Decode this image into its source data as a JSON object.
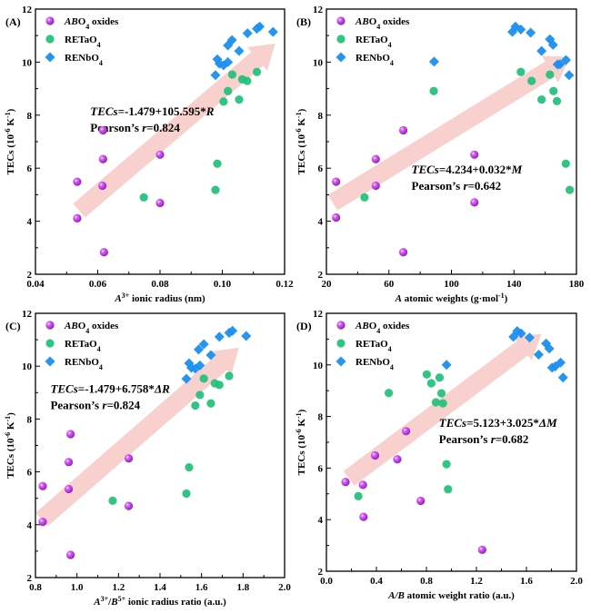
{
  "chart_data": [
    {
      "type": "scatter",
      "panel_label": "(A)",
      "xlabel": "A3+ ionic radius (nm)",
      "xlabel_parts": {
        "italic": "A",
        "sup": "3+",
        "rest": " ionic radius (nm)"
      },
      "ylabel": "TECs (10-6 K-1)",
      "xlim": [
        0.04,
        0.12
      ],
      "ylim": [
        2,
        12
      ],
      "xticks": [
        0.04,
        0.06,
        0.08,
        0.1,
        0.12
      ],
      "xtick_labels": [
        "0.04",
        "0.06",
        "0.08",
        "0.10",
        "0.12"
      ],
      "yticks": [
        2,
        4,
        6,
        8,
        10,
        12
      ],
      "ytick_labels": [
        "2",
        "4",
        "6",
        "8",
        "10",
        "12"
      ],
      "legend_position": "top-left",
      "equation": {
        "line1_italic": "TECs",
        "line1_rest": "=-1.479+105.595*",
        "line1_var": "R",
        "line2_text": "Pearson’s ",
        "line2_italic": "r",
        "line2_rest": "=0.824",
        "position": "upper-middle"
      },
      "arrow": {
        "from": [
          0.054,
          4.4
        ],
        "to": [
          0.117,
          10.7
        ]
      },
      "series": [
        {
          "name": "ABO4 oxides",
          "marker": "sphere",
          "color": "#c84fe6",
          "points": [
            [
              0.0534,
              5.49
            ],
            [
              0.0534,
              4.11
            ],
            [
              0.0617,
              7.43
            ],
            [
              0.0617,
              6.34
            ],
            [
              0.0615,
              5.34
            ],
            [
              0.062,
              2.83
            ],
            [
              0.08,
              6.51
            ],
            [
              0.08,
              4.69
            ]
          ]
        },
        {
          "name": "RETaO4",
          "marker": "circle",
          "color": "#1fc07a",
          "points": [
            [
              0.0748,
              4.9
            ],
            [
              0.0978,
              5.18
            ],
            [
              0.0984,
              6.17
            ],
            [
              0.1004,
              8.51
            ],
            [
              0.1018,
              8.91
            ],
            [
              0.1032,
              9.53
            ],
            [
              0.1054,
              8.59
            ],
            [
              0.1064,
              9.35
            ],
            [
              0.108,
              9.29
            ],
            [
              0.1111,
              9.63
            ]
          ]
        },
        {
          "name": "RENbO4",
          "marker": "diamond",
          "color": "#1a8ff0",
          "points": [
            [
              0.0978,
              9.51
            ],
            [
              0.0984,
              10.11
            ],
            [
              0.0991,
              9.94
            ],
            [
              0.1004,
              9.88
            ],
            [
              0.1018,
              10.0
            ],
            [
              0.1018,
              10.63
            ],
            [
              0.1031,
              10.83
            ],
            [
              0.1054,
              10.42
            ],
            [
              0.1081,
              11.09
            ],
            [
              0.1111,
              11.26
            ],
            [
              0.112,
              11.34
            ],
            [
              0.1163,
              11.14
            ]
          ]
        }
      ]
    },
    {
      "type": "scatter",
      "panel_label": "(B)",
      "xlabel": "A atomic weights (g·mol-1)",
      "xlabel_parts": {
        "italic": "A",
        "sup": "",
        "rest": " atomic weights (g·mol",
        "sup2": "-1",
        "tail": ")"
      },
      "ylabel": "TECs (10-6 K-1)",
      "xlim": [
        20,
        180
      ],
      "ylim": [
        2,
        12
      ],
      "xticks": [
        20,
        60,
        100,
        140,
        180
      ],
      "xtick_labels": [
        "20",
        "60",
        "100",
        "140",
        "180"
      ],
      "yticks": [
        2,
        4,
        6,
        8,
        10,
        12
      ],
      "ytick_labels": [
        "2",
        "4",
        "6",
        "8",
        "10",
        "12"
      ],
      "legend_position": "top-left",
      "equation": {
        "line1_italic": "TECs",
        "line1_rest": "=4.234+0.032*",
        "line1_var": "M",
        "line2_text": "Pearson’s ",
        "line2_italic": "r",
        "line2_rest": "=0.642",
        "position": "lower-middle"
      },
      "arrow": {
        "from": [
          24,
          4.7
        ],
        "to": [
          176,
          10.2
        ]
      },
      "series": [
        {
          "name": "ABO4 oxides",
          "marker": "sphere",
          "color": "#c84fe6",
          "points": [
            [
              26.2,
              5.49
            ],
            [
              26.2,
              4.14
            ],
            [
              51.6,
              6.34
            ],
            [
              51.6,
              5.34
            ],
            [
              69.2,
              7.43
            ],
            [
              69.2,
              2.83
            ],
            [
              114.7,
              6.51
            ],
            [
              114.7,
              4.71
            ]
          ]
        },
        {
          "name": "RETaO4",
          "marker": "circle",
          "color": "#1fc07a",
          "points": [
            [
              44.4,
              4.9
            ],
            [
              88.7,
              8.91
            ],
            [
              144.4,
              9.63
            ],
            [
              151.3,
              9.29
            ],
            [
              157.7,
              8.59
            ],
            [
              163.0,
              9.53
            ],
            [
              165.3,
              8.91
            ],
            [
              167.5,
              8.53
            ],
            [
              173.2,
              6.17
            ],
            [
              175.7,
              5.18
            ]
          ]
        },
        {
          "name": "RENbO4",
          "marker": "diamond",
          "color": "#1a8ff0",
          "points": [
            [
              88.9,
              10.02
            ],
            [
              139.0,
              11.14
            ],
            [
              141.0,
              11.34
            ],
            [
              144.4,
              11.23
            ],
            [
              150.7,
              11.11
            ],
            [
              157.7,
              10.42
            ],
            [
              163.0,
              10.86
            ],
            [
              165.0,
              10.65
            ],
            [
              167.9,
              9.91
            ],
            [
              169.5,
              9.92
            ],
            [
              173.3,
              10.08
            ],
            [
              175.3,
              9.51
            ]
          ]
        }
      ]
    },
    {
      "type": "scatter",
      "panel_label": "(C)",
      "xlabel": "A3+/B5+ ionic radius ratio (a.u.)",
      "xlabel_parts": {
        "italic": "A",
        "sup": "3+",
        "rest": "/",
        "italic2": "B",
        "sup2": "5+",
        "tail": " ionic radius ratio (a.u.)"
      },
      "ylabel": "TECs (10-6 K-1)",
      "xlim": [
        0.8,
        2.0
      ],
      "ylim": [
        2,
        12
      ],
      "xticks": [
        0.8,
        1.0,
        1.2,
        1.4,
        1.6,
        1.8,
        2.0
      ],
      "xtick_labels": [
        "0.8",
        "1.0",
        "1.2",
        "1.4",
        "1.6",
        "1.8",
        "2.0"
      ],
      "yticks": [
        2,
        4,
        6,
        8,
        10,
        12
      ],
      "ytick_labels": [
        "2",
        "4",
        "6",
        "8",
        "10",
        "12"
      ],
      "legend_position": "top-left",
      "equation": {
        "line1_italic": "TECs",
        "line1_rest": "=-1.479+6.758*",
        "line1_var": "ΔR",
        "line2_text": "Pearson’s ",
        "line2_italic": "r",
        "line2_rest": "=0.824",
        "position": "upper-left"
      },
      "arrow": {
        "from": [
          0.83,
          4.2
        ],
        "to": [
          1.78,
          10.7
        ]
      },
      "series": [
        {
          "name": "ABO4 oxides",
          "marker": "sphere",
          "color": "#c84fe6",
          "points": [
            [
              0.835,
              5.46
            ],
            [
              0.835,
              4.11
            ],
            [
              0.969,
              7.43
            ],
            [
              0.96,
              6.37
            ],
            [
              0.96,
              5.35
            ],
            [
              0.969,
              2.86
            ],
            [
              1.249,
              6.51
            ],
            [
              1.249,
              4.71
            ]
          ]
        },
        {
          "name": "RETaO4",
          "marker": "circle",
          "color": "#1fc07a",
          "points": [
            [
              1.172,
              4.91
            ],
            [
              1.527,
              5.18
            ],
            [
              1.54,
              6.17
            ],
            [
              1.57,
              8.51
            ],
            [
              1.592,
              8.91
            ],
            [
              1.611,
              9.53
            ],
            [
              1.645,
              8.59
            ],
            [
              1.664,
              9.35
            ],
            [
              1.686,
              9.29
            ],
            [
              1.733,
              9.63
            ]
          ]
        },
        {
          "name": "RENbO4",
          "marker": "diamond",
          "color": "#1a8ff0",
          "points": [
            [
              1.527,
              9.52
            ],
            [
              1.54,
              10.11
            ],
            [
              1.551,
              9.94
            ],
            [
              1.57,
              9.91
            ],
            [
              1.592,
              10.03
            ],
            [
              1.586,
              10.63
            ],
            [
              1.611,
              10.83
            ],
            [
              1.645,
              10.42
            ],
            [
              1.686,
              11.11
            ],
            [
              1.733,
              11.26
            ],
            [
              1.749,
              11.34
            ],
            [
              1.815,
              11.14
            ]
          ]
        }
      ]
    },
    {
      "type": "scatter",
      "panel_label": "(D)",
      "xlabel": "A/B atomic weight ratio (a.u.)",
      "xlabel_parts": {
        "italic": "A/B",
        "sup": "",
        "rest": " atomic weight ratio (a.u.)"
      },
      "ylabel": "TECs (10-6 K-1)",
      "xlim": [
        0.0,
        2.0
      ],
      "ylim": [
        2,
        12
      ],
      "xticks": [
        0.0,
        0.4,
        0.8,
        1.2,
        1.6,
        2.0
      ],
      "xtick_labels": [
        "0.0",
        "0.4",
        "0.8",
        "1.2",
        "1.6",
        "2.0"
      ],
      "yticks": [
        2,
        4,
        6,
        8,
        10,
        12
      ],
      "ytick_labels": [
        "2",
        "4",
        "6",
        "8",
        "10",
        "12"
      ],
      "legend_position": "top-left",
      "equation": {
        "line1_italic": "TECs",
        "line1_rest": "=5.123+3.025*",
        "line1_var": "ΔM",
        "line2_text": "Pearson’s ",
        "line2_italic": "r",
        "line2_rest": "=0.682",
        "position": "middle-right"
      },
      "arrow": {
        "from": [
          0.18,
          5.6
        ],
        "to": [
          1.72,
          11.2
        ]
      },
      "series": [
        {
          "name": "ABO4 oxides",
          "marker": "sphere",
          "color": "#c84fe6",
          "points": [
            [
              0.153,
              5.46
            ],
            [
              0.292,
              5.35
            ],
            [
              0.297,
              4.11
            ],
            [
              0.389,
              6.49
            ],
            [
              0.567,
              6.34
            ],
            [
              0.637,
              7.43
            ],
            [
              0.754,
              4.73
            ],
            [
              1.246,
              2.83
            ]
          ]
        },
        {
          "name": "RETaO4",
          "marker": "circle",
          "color": "#1fc07a",
          "points": [
            [
              0.255,
              4.91
            ],
            [
              0.499,
              8.91
            ],
            [
              0.803,
              9.63
            ],
            [
              0.839,
              9.29
            ],
            [
              0.876,
              8.55
            ],
            [
              0.905,
              9.51
            ],
            [
              0.92,
              8.9
            ],
            [
              0.932,
              8.51
            ],
            [
              0.961,
              6.15
            ],
            [
              0.973,
              5.18
            ]
          ]
        },
        {
          "name": "RENbO4",
          "marker": "diamond",
          "color": "#1a8ff0",
          "points": [
            [
              0.961,
              10.0
            ],
            [
              1.496,
              11.09
            ],
            [
              1.526,
              11.31
            ],
            [
              1.557,
              11.22
            ],
            [
              1.625,
              11.06
            ],
            [
              1.698,
              10.4
            ],
            [
              1.757,
              10.83
            ],
            [
              1.783,
              10.63
            ],
            [
              1.805,
              9.89
            ],
            [
              1.83,
              9.94
            ],
            [
              1.873,
              10.09
            ],
            [
              1.893,
              9.51
            ]
          ]
        }
      ]
    }
  ],
  "legend": {
    "entries": [
      {
        "italic": "AB",
        "rest": "O",
        "sub": "4",
        "tail": " oxides"
      },
      {
        "italic": "",
        "rest": "RETaO",
        "sub": "4",
        "tail": ""
      },
      {
        "italic": "",
        "rest": "RENbO",
        "sub": "4",
        "tail": ""
      }
    ]
  },
  "ylabel_parts": {
    "base": "TECs (10",
    "sup1": "-6",
    "mid": " K",
    "sup2": "-1",
    "tail": ")"
  },
  "colors": {
    "arrow": "#f7c9c6",
    "axis": "#000000"
  }
}
